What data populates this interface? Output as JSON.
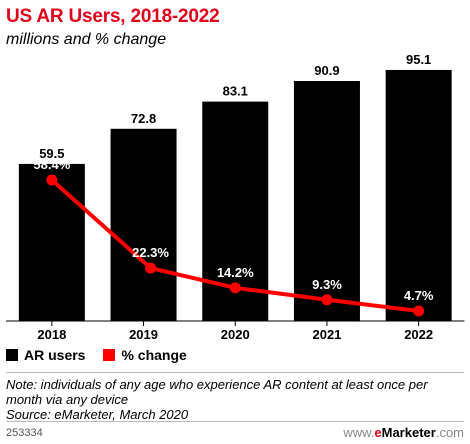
{
  "title": "US AR Users, 2018-2022",
  "subtitle": "millions and % change",
  "chart_data": {
    "type": "bar",
    "categories": [
      "2018",
      "2019",
      "2020",
      "2021",
      "2022"
    ],
    "series": [
      {
        "name": "AR users",
        "type": "bar",
        "values": [
          59.5,
          72.8,
          83.1,
          90.9,
          95.1
        ],
        "labels": [
          "59.5",
          "72.8",
          "83.1",
          "90.9",
          "95.1"
        ],
        "color": "#000000"
      },
      {
        "name": "% change",
        "type": "line",
        "values": [
          58.4,
          22.3,
          14.2,
          9.3,
          4.7
        ],
        "labels": [
          "58.4%",
          "22.3%",
          "14.2%",
          "9.3%",
          "4.7%"
        ],
        "color": "#ff0000"
      }
    ],
    "ylim": [
      0,
      100
    ],
    "ylim_pct": [
      0,
      70
    ],
    "grid": false,
    "legend_position": "bottom-left"
  },
  "legend": {
    "bar_label": "AR users",
    "line_label": "% change"
  },
  "note": "Note: individuals of any age who experience AR content at least once per month via any device",
  "source": "Source: eMarketer, March 2020",
  "chart_id": "253334",
  "brand": {
    "www": "www.",
    "e": "e",
    "rest": "Marketer",
    "suffix": ".com"
  }
}
